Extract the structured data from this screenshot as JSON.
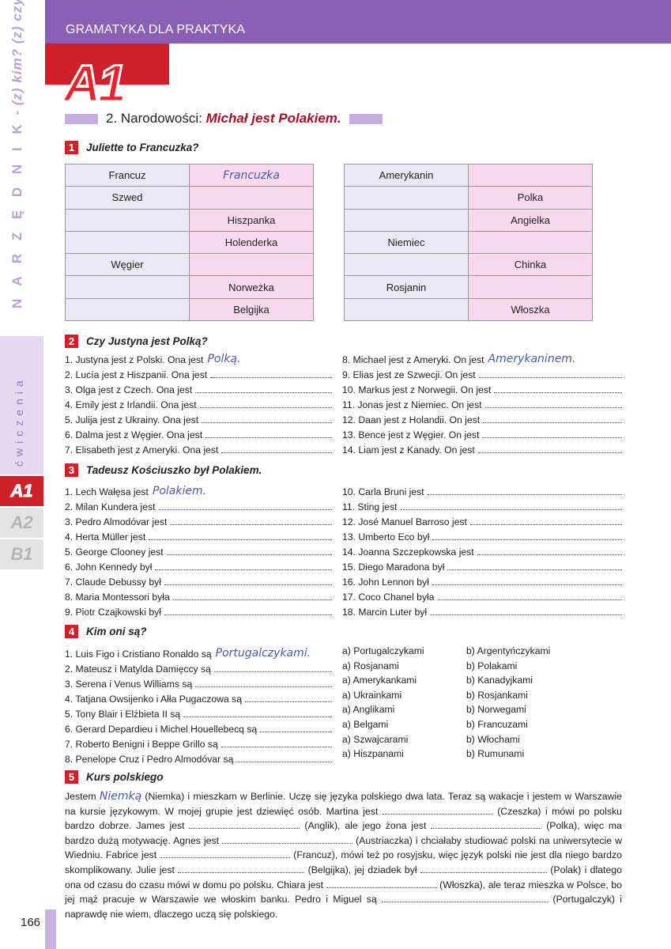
{
  "header": {
    "title": "GRAMATYKA DLA PRAKTYKA"
  },
  "sidebar": {
    "vertical_main": "N A R Z Ę D N I K",
    "vertical_sub": " - (z) kim? (z) czym?",
    "section": "ćwiczenia",
    "levels": [
      "A1",
      "A2",
      "B1"
    ],
    "active_level": "A1"
  },
  "level_logo": "A1",
  "page_number": "166",
  "chapter": {
    "prefix": "2. Narodowości: ",
    "title": "Michał jest Polakiem."
  },
  "ex1": {
    "num": "1",
    "title": "Juliette to Francuzka?",
    "left": [
      [
        "Francuz",
        "Francuzka"
      ],
      [
        "Szwed",
        ""
      ],
      [
        "",
        "Hiszpanka"
      ],
      [
        "",
        "Holenderka"
      ],
      [
        "Węgier",
        ""
      ],
      [
        "",
        "Norweżka"
      ],
      [
        "",
        "Belgijka"
      ]
    ],
    "right": [
      [
        "Amerykanin",
        ""
      ],
      [
        "",
        "Polka"
      ],
      [
        "",
        "Angielka"
      ],
      [
        "Niemiec",
        ""
      ],
      [
        "",
        "Chinka"
      ],
      [
        "Rosjanin",
        ""
      ],
      [
        "",
        "Włoszka"
      ]
    ]
  },
  "ex2": {
    "num": "2",
    "title": "Czy Justyna jest Polką?",
    "left": [
      {
        "t": "1. Justyna jest z Polski. Ona jest",
        "a": "Polką."
      },
      {
        "t": "2. Lucía jest z Hiszpanii. Ona jest"
      },
      {
        "t": "3. Olga jest z Czech. Ona jest"
      },
      {
        "t": "4. Emily jest z Irlandii. Ona jest"
      },
      {
        "t": "5. Julija jest z Ukrainy. Ona jest"
      },
      {
        "t": "6. Dalma jest z Węgier. Ona jest"
      },
      {
        "t": "7. Elisabeth jest z Ameryki. Ona jest"
      }
    ],
    "right": [
      {
        "t": "8. Michael jest z Ameryki. On jest",
        "a": "Amerykaninem."
      },
      {
        "t": "9. Elias jest ze Szwecji. On jest"
      },
      {
        "t": "10. Markus jest z Norwegii. On jest"
      },
      {
        "t": "11. Jonas jest z Niemiec. On jest"
      },
      {
        "t": "12. Daan jest z Holandii. On jest"
      },
      {
        "t": "13. Bence jest z Węgier. On jest"
      },
      {
        "t": "14. Liam jest z Kanady. On jest"
      }
    ]
  },
  "ex3": {
    "num": "3",
    "title": "Tadeusz Kościuszko był Polakiem.",
    "left": [
      {
        "t": "1. Lech Wałęsa jest",
        "a": "Polakiem."
      },
      {
        "t": "2. Milan Kundera jest"
      },
      {
        "t": "3. Pedro Almodóvar jest"
      },
      {
        "t": "4. Herta Müller jest"
      },
      {
        "t": "5. George Clooney jest"
      },
      {
        "t": "6. John Kennedy był"
      },
      {
        "t": "7. Claude Debussy był"
      },
      {
        "t": "8. Maria Montessori była"
      },
      {
        "t": "9. Piotr Czajkowski był"
      }
    ],
    "right": [
      {
        "t": "10. Carla Bruni jest"
      },
      {
        "t": "11. Sting jest"
      },
      {
        "t": "12. José Manuel Barroso jest"
      },
      {
        "t": "13. Umberto Eco był"
      },
      {
        "t": "14. Joanna Szczepkowska jest"
      },
      {
        "t": "15. Diego Maradona był"
      },
      {
        "t": "16. John Lennon był"
      },
      {
        "t": "17. Coco Chanel była"
      },
      {
        "t": "18. Marcin Luter był"
      }
    ]
  },
  "ex4": {
    "num": "4",
    "title": "Kim oni są?",
    "items": [
      {
        "t": "1. Luis Figo i Cristiano Ronaldo są",
        "a": "Portugalczykami."
      },
      {
        "t": "2. Mateusz i Matylda Damięccy są"
      },
      {
        "t": "3. Serena i Venus Williams są"
      },
      {
        "t": "4. Tatjana Owsijenko i Ałła Pugaczowa są"
      },
      {
        "t": "5. Tony Blair i Elżbieta II są"
      },
      {
        "t": "6. Gerard Depardieu i Michel Houellebecq są"
      },
      {
        "t": "7. Roberto Benigni i Beppe Grillo są"
      },
      {
        "t": "8. Penelope Cruz i Pedro Almodóvar są"
      }
    ],
    "options_a": [
      "a) Portugalczykami",
      "a) Rosjanami",
      "a) Amerykankami",
      "a) Ukrainkami",
      "a) Anglikami",
      "a) Belgami",
      "a) Szwajcarami",
      "a) Hiszpanami"
    ],
    "options_b": [
      "b) Argentyńczykami",
      "b) Polakami",
      "b) Kanadyjkami",
      "b) Rosjankami",
      "b) Norwegami",
      "b) Francuzami",
      "b) Włochami",
      "b) Rumunami"
    ]
  },
  "ex5": {
    "num": "5",
    "title": "Kurs polskiego",
    "s0": "Jestem ",
    "answer": "Niemką",
    "s1": " (Niemka) i mieszkam w Berlinie. Uczę się języka polskiego dwa lata. Teraz są wakacje i jestem w Warszawie na kursie językowym. W mojej grupie jest dziewięć osób. Martina jest ",
    "s2": " (Czeszka) i mówi po polsku bardzo dobrze. James jest ",
    "s3": " (Anglik), ale jego żona jest ",
    "s4": " (Polka), więc ma bardzo dużą motywację. Agnes jest ",
    "s5": " (Austriaczka) i chciałaby studiować polski na uniwersytecie w Wiedniu. Fabrice jest ",
    "s6": " (Francuz), mówi też po rosyjsku, więc język polski nie jest dla niego bardzo skomplikowany. Julie jest ",
    "s7": " (Belgijka), jej dziadek był ",
    "s8": " (Polak) i dlatego ona od czasu do czasu mówi w domu po polsku. Chiara jest ",
    "s9": " (Włoszka), ale teraz mieszka w Polsce, bo jej mąż pracuje w Warszawie we włoskim banku. Pedro i Miguel są ",
    "s10": " (Portugalczyk) i naprawdę nie wiem, dlaczego uczą się polskiego."
  },
  "colors": {
    "header": "#8a5fb4",
    "accent_red": "#d0202a",
    "title_red": "#a3122a",
    "table_left": "#e9e8f4",
    "table_right": "#f8d9ee",
    "handwriting": "#4a5aa8"
  }
}
